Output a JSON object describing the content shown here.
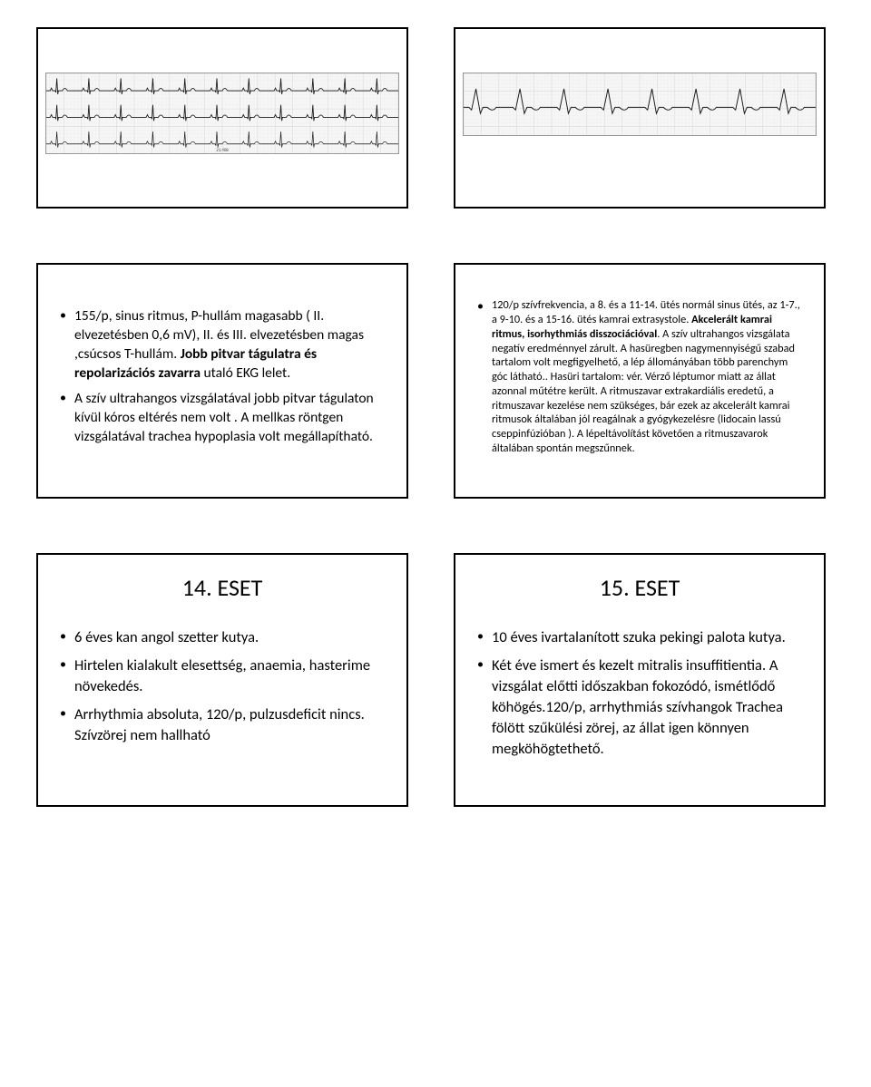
{
  "ecg1": {
    "lead_count": 3,
    "beat_count": 11,
    "bg_color": "#f6f6f6",
    "grid_color": "#d8d8d8",
    "grid_minor": "#ececec",
    "trace_color": "#1a1a1a",
    "height": 90,
    "label": "21.408"
  },
  "ecg2": {
    "lead_count": 1,
    "beat_count": 8,
    "bg_color": "#f6f6f6",
    "grid_color": "#d8d8d8",
    "grid_minor": "#ececec",
    "trace_color": "#1a1a1a",
    "height": 70,
    "wide_qrs": true
  },
  "slide3": {
    "items": [
      "155/p, sinus ritmus, P-hullám magasabb ( II. elvezetésben 0,6 mV), II. és III. elvezetésben magas ,csúcsos T-hullám. Jobb pitvar tágulatra és repolarizációs zavarra utaló EKG lelet.",
      "A szív ultrahangos vizsgálatával jobb pitvar tágulaton kívül kóros eltérés nem volt . A mellkas röntgen vizsgálatával trachea hypoplasia volt megállapítható."
    ],
    "bold_runs": [
      "Jobb pitvar tágulatra és repolarizációs zavarra"
    ]
  },
  "slide4": {
    "items": [
      "120/p szívfrekvencia, a 8. és a 11-14. ütés  normál sinus ütés, az 1-7., a 9-10. és a 15-16. ütés kamrai extrasystole. Akcelerált kamrai ritmus, isorhythmiás disszociációval. A szív ultrahangos vizsgálata negatív eredménnyel zárult. A hasüregben nagymennyiségű szabad tartalom volt megfigyelhető, a lép állományában több parenchym góc látható.. Hasüri tartalom: vér. Vérző léptumor miatt az állat azonnal műtétre került. A ritmuszavar extrakardiális eredetű, a ritmuszavar kezelése nem szükséges, bár ezek az akcelerált kamrai ritmusok általában jól reagálnak a gyógykezelésre (lidocain lassú cseppinfúzióban ). A lépeltávolítást követően a ritmuszavarok általában spontán megszűnnek."
    ],
    "bold_runs": [
      "Akcelerált kamrai ritmus, isorhythmiás disszociációval"
    ]
  },
  "slide5": {
    "title": "14. ESET",
    "items": [
      "6 éves kan angol szetter kutya.",
      "Hirtelen kialakult elesettség, anaemia, hasterime növekedés.",
      "Arrhythmia absoluta, 120/p, pulzusdeficit nincs. Szívzörej nem hallható"
    ]
  },
  "slide6": {
    "title": "15. ESET",
    "items": [
      "10 éves ivartalanított szuka pekingi palota kutya.",
      "Két éve ismert és kezelt mitralis insuffitientia. A vizsgálat előtti időszakban fokozódó, ismétlődő köhögés.120/p, arrhythmiás szívhangok  Trachea fölött szűkülési zörej, az állat igen könnyen megköhögtethető."
    ]
  }
}
